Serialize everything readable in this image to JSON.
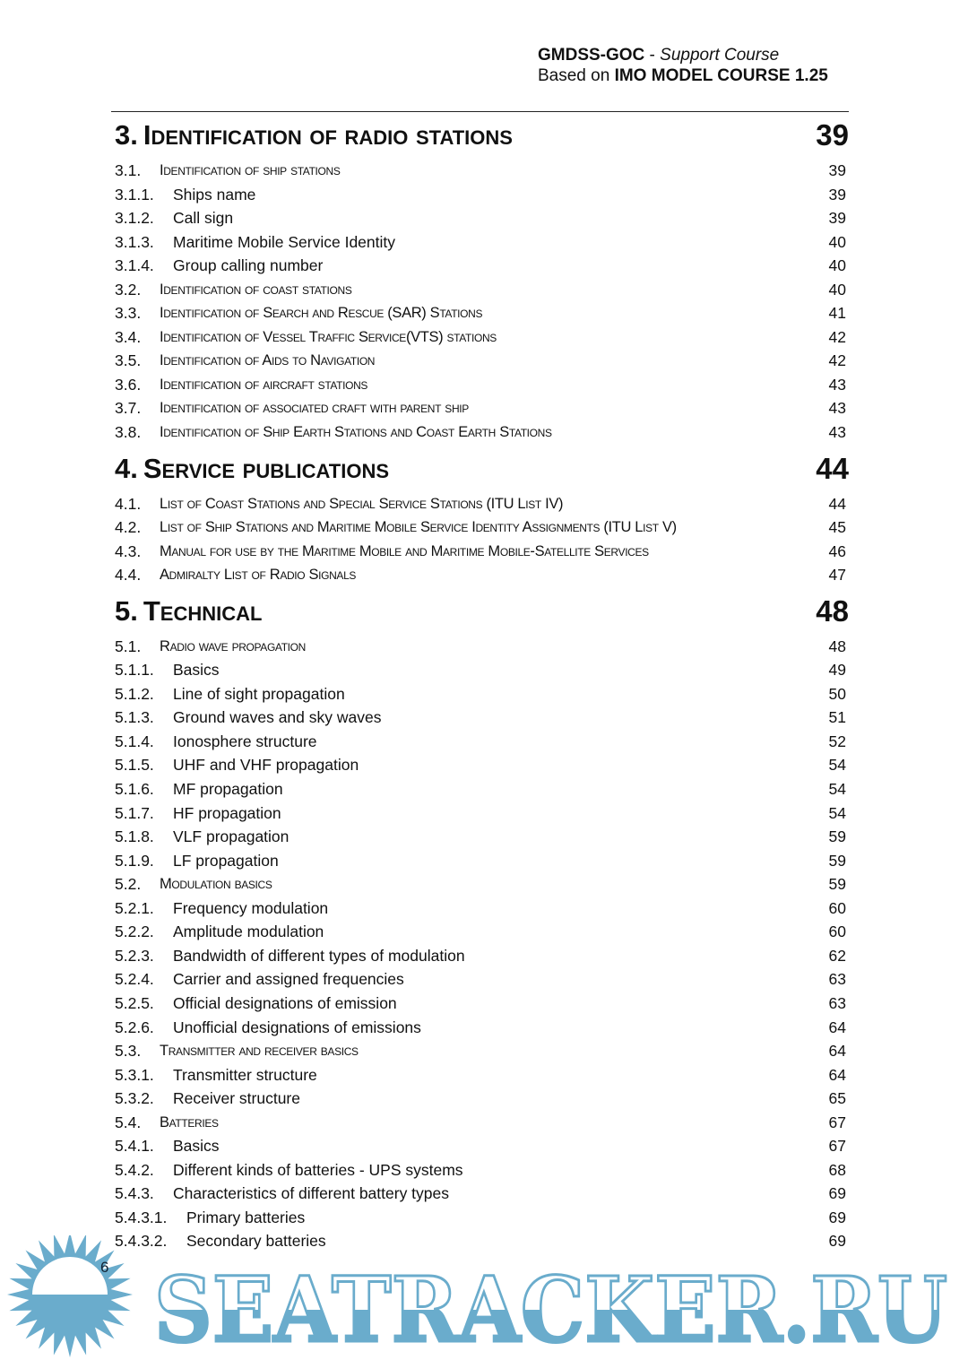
{
  "header": {
    "course_code": "GMDSS-GOC",
    "separator": " - ",
    "course_type": "Support Course",
    "based_on_prefix": "Based on ",
    "based_on": "IMO MODEL COURSE 1.25"
  },
  "toc": [
    {
      "level": 1,
      "num": "3.",
      "title": "Identification of radio stations",
      "page": "39"
    },
    {
      "level": 2,
      "num": "3.1.",
      "title": "Identification of ship stations",
      "page": "39"
    },
    {
      "level": 3,
      "num": "3.1.1.",
      "title": "Ships name",
      "page": "39"
    },
    {
      "level": 3,
      "num": "3.1.2.",
      "title": "Call sign",
      "page": "39"
    },
    {
      "level": 3,
      "num": "3.1.3.",
      "title": "Maritime Mobile Service Identity",
      "page": "40"
    },
    {
      "level": 3,
      "num": "3.1.4.",
      "title": "Group calling number",
      "page": "40"
    },
    {
      "level": 2,
      "num": "3.2.",
      "title": "Identification of coast stations",
      "page": "40"
    },
    {
      "level": 2,
      "num": "3.3.",
      "title": "Identification of Search and Rescue (SAR) Stations",
      "page": "41"
    },
    {
      "level": 2,
      "num": "3.4.",
      "title": "Identification of Vessel Traffic Service(VTS) stations",
      "page": "42"
    },
    {
      "level": 2,
      "num": "3.5.",
      "title": "Identification of Aids to Navigation",
      "page": "42"
    },
    {
      "level": 2,
      "num": "3.6.",
      "title": "Identification of aircraft stations",
      "page": "43"
    },
    {
      "level": 2,
      "num": "3.7.",
      "title": "Identification of associated craft with parent ship",
      "page": "43"
    },
    {
      "level": 2,
      "num": "3.8.",
      "title": "Identification of Ship Earth Stations and Coast Earth Stations",
      "page": "43"
    },
    {
      "level": 1,
      "num": "4.",
      "title": "Service publications",
      "page": "44"
    },
    {
      "level": 2,
      "num": "4.1.",
      "title": "List of Coast Stations and Special Service Stations (ITU List IV)",
      "page": "44"
    },
    {
      "level": 2,
      "num": "4.2.",
      "title": "List of Ship Stations and Maritime Mobile Service Identity Assignments (ITU List V)",
      "page": "45"
    },
    {
      "level": 2,
      "num": "4.3.",
      "title": "Manual for use by the Maritime Mobile and Maritime Mobile-Satellite Services",
      "page": "46"
    },
    {
      "level": 2,
      "num": "4.4.",
      "title": "Admiralty List of Radio Signals",
      "page": "47"
    },
    {
      "level": 1,
      "num": "5.",
      "title": "Technical",
      "page": "48"
    },
    {
      "level": 2,
      "num": "5.1.",
      "title": "Radio wave propagation",
      "page": "48"
    },
    {
      "level": 3,
      "num": "5.1.1.",
      "title": "Basics",
      "page": "49"
    },
    {
      "level": 3,
      "num": "5.1.2.",
      "title": "Line of sight propagation",
      "page": "50"
    },
    {
      "level": 3,
      "num": "5.1.3.",
      "title": "Ground waves and sky waves",
      "page": "51"
    },
    {
      "level": 3,
      "num": "5.1.4.",
      "title": "Ionosphere structure",
      "page": "52"
    },
    {
      "level": 3,
      "num": "5.1.5.",
      "title": "UHF and VHF propagation",
      "page": "54"
    },
    {
      "level": 3,
      "num": "5.1.6.",
      "title": "MF propagation",
      "page": "54"
    },
    {
      "level": 3,
      "num": "5.1.7.",
      "title": "HF propagation",
      "page": "54"
    },
    {
      "level": 3,
      "num": "5.1.8.",
      "title": "VLF propagation",
      "page": "59"
    },
    {
      "level": 3,
      "num": "5.1.9.",
      "title": "LF propagation",
      "page": "59"
    },
    {
      "level": 2,
      "num": "5.2.",
      "title": "Modulation basics",
      "page": "59"
    },
    {
      "level": 3,
      "num": "5.2.1.",
      "title": "Frequency modulation",
      "page": "60"
    },
    {
      "level": 3,
      "num": "5.2.2.",
      "title": "Amplitude modulation",
      "page": "60"
    },
    {
      "level": 3,
      "num": "5.2.3.",
      "title": "Bandwidth of different types of modulation",
      "page": "62"
    },
    {
      "level": 3,
      "num": "5.2.4.",
      "title": "Carrier and assigned frequencies",
      "page": "63"
    },
    {
      "level": 3,
      "num": "5.2.5.",
      "title": "Official designations of emission",
      "page": "63"
    },
    {
      "level": 3,
      "num": "5.2.6.",
      "title": "Unofficial designations of emissions",
      "page": "64"
    },
    {
      "level": 2,
      "num": "5.3.",
      "title": "Transmitter and receiver basics",
      "page": "64"
    },
    {
      "level": 3,
      "num": "5.3.1.",
      "title": "Transmitter structure",
      "page": "64"
    },
    {
      "level": 3,
      "num": "5.3.2.",
      "title": "Receiver structure",
      "page": "65"
    },
    {
      "level": 2,
      "num": "5.4.",
      "title": "Batteries",
      "page": "67"
    },
    {
      "level": 3,
      "num": "5.4.1.",
      "title": "Basics",
      "page": "67"
    },
    {
      "level": 3,
      "num": "5.4.2.",
      "title": "Different kinds of batteries - UPS systems",
      "page": "68"
    },
    {
      "level": 3,
      "num": "5.4.3.",
      "title": "Characteristics of different battery types",
      "page": "69"
    },
    {
      "level": 4,
      "num": "5.4.3.1.",
      "title": "Primary batteries",
      "page": "69"
    },
    {
      "level": 4,
      "num": "5.4.3.2.",
      "title": "Secondary batteries",
      "page": "69"
    }
  ],
  "footer": {
    "page_number": "6"
  },
  "watermark": {
    "text": "SEATRACKER.RU",
    "color": "#6aaccc"
  }
}
